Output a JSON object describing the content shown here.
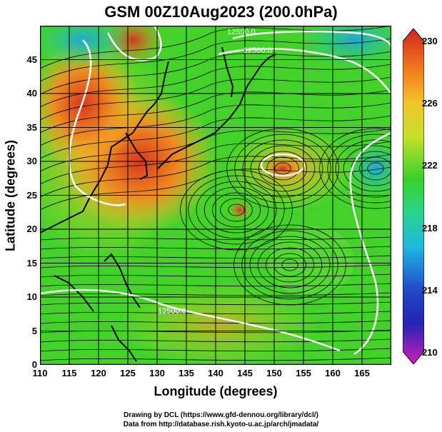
{
  "title": "GSM 00Z10Aug2023 (200.0hPa)",
  "xaxis": {
    "label": "Longitude (degrees)",
    "ticks": [
      "110",
      "115",
      "120",
      "125",
      "130",
      "135",
      "140",
      "145",
      "150",
      "155",
      "160",
      "165"
    ],
    "range": [
      110,
      170
    ]
  },
  "yaxis": {
    "label": "Latitude  (degrees)",
    "ticks": [
      "0",
      "5",
      "10",
      "15",
      "20",
      "25",
      "30",
      "35",
      "40",
      "45"
    ],
    "range": [
      0,
      50
    ]
  },
  "colorbar": {
    "ticks": [
      "230",
      "226",
      "222",
      "218",
      "214",
      "210"
    ],
    "range": [
      210,
      230
    ]
  },
  "contour_labels": [
    "12500.0",
    "12500.0",
    "12500.0"
  ],
  "credits": {
    "line1": "Drawing by DCL (https://www.gfd-dennou.org/library/dcl/)",
    "line2": "Data from http://database.rish.kyoto-u.ac.jp/arch/jmadata/"
  },
  "colors": {
    "warm": "#e8801a",
    "mid": "#3fcf2a",
    "cool": "#22c8a8",
    "contour": "#ffffff",
    "stream": "#000000"
  }
}
